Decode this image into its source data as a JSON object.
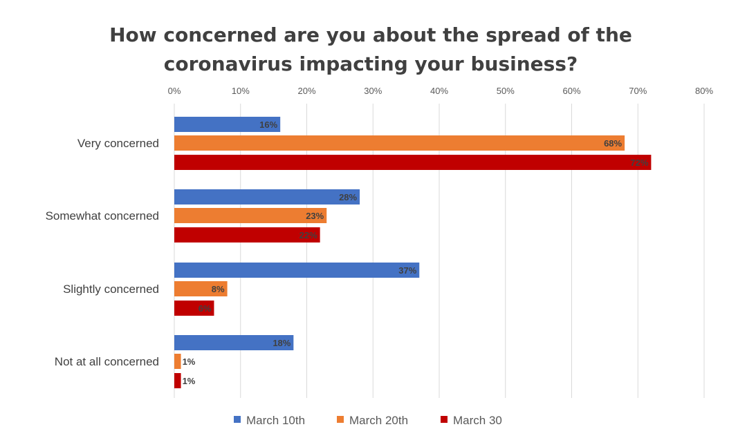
{
  "chart_data": {
    "type": "bar",
    "orientation": "horizontal",
    "title_lines": [
      "How concerned are you about the spread of the",
      "coronavirus impacting your business?"
    ],
    "categories": [
      "Very concerned",
      "Somewhat concerned",
      "Slightly concerned",
      "Not at all concerned"
    ],
    "series": [
      {
        "name": "March 10th",
        "color": "#4472C4",
        "values": [
          16,
          28,
          37,
          18
        ]
      },
      {
        "name": "March 20th",
        "color": "#ED7D31",
        "values": [
          68,
          23,
          8,
          1
        ]
      },
      {
        "name": "March 30",
        "color": "#C00000",
        "values": [
          72,
          22,
          6,
          1
        ]
      }
    ],
    "xlim": [
      0,
      80
    ],
    "xticks": [
      0,
      10,
      20,
      30,
      40,
      50,
      60,
      70,
      80
    ],
    "tick_suffix": "%",
    "axis_position": "top",
    "grid": true,
    "legend": "bottom"
  }
}
